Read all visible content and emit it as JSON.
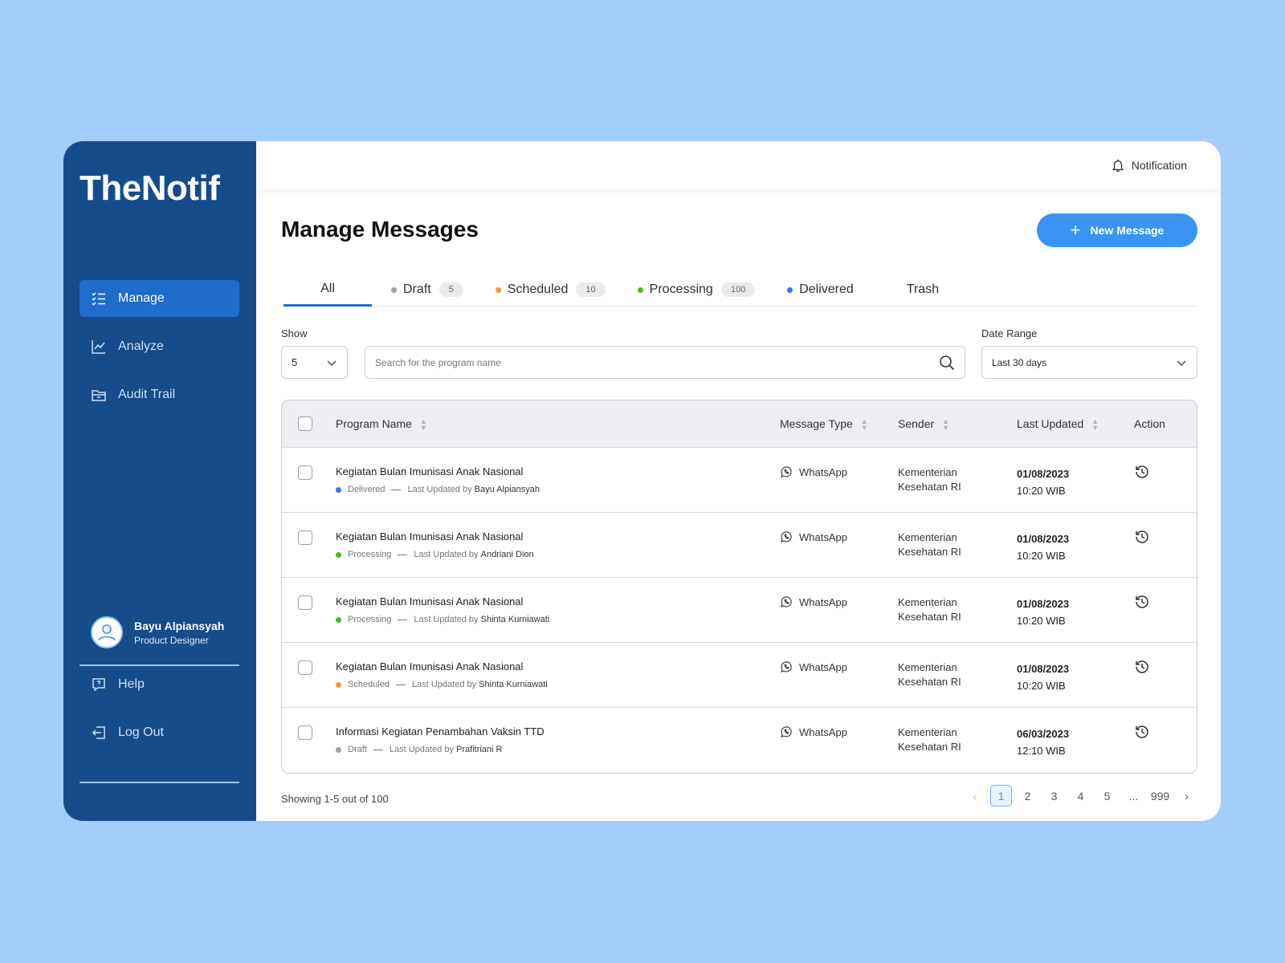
{
  "app": {
    "logo": "TheNotif"
  },
  "sidebar": {
    "items": [
      {
        "label": "Manage",
        "icon": "list-check-icon"
      },
      {
        "label": "Analyze",
        "icon": "chart-line-icon"
      },
      {
        "label": "Audit Trail",
        "icon": "folder-icon"
      }
    ],
    "user": {
      "name": "Bayu Alpiansyah",
      "role": "Product Designer"
    },
    "bottom": [
      {
        "label": "Help",
        "icon": "help-icon"
      },
      {
        "label": "Log Out",
        "icon": "logout-icon"
      }
    ]
  },
  "header": {
    "notification": "Notification"
  },
  "page": {
    "title": "Manage Messages",
    "new_button": "New Message"
  },
  "tabs": [
    {
      "label": "All"
    },
    {
      "label": "Draft",
      "count": "5",
      "color": "#9EA2A9"
    },
    {
      "label": "Scheduled",
      "count": "10",
      "color": "#F7993A"
    },
    {
      "label": "Processing",
      "count": "100",
      "color": "#4CB52E"
    },
    {
      "label": "Delivered",
      "color": "#3B73E0"
    },
    {
      "label": "Trash"
    }
  ],
  "filters": {
    "show_label": "Show",
    "show_value": "5",
    "search_placeholder": "Search for the program name",
    "date_label": "Date Range",
    "date_value": "Last 30 days"
  },
  "table": {
    "columns": [
      "Program Name",
      "Message Type",
      "Sender",
      "Last Updated",
      "Action"
    ],
    "rows": [
      {
        "name": "Kegiatan Bulan Imunisasi Anak Nasional",
        "status": "Delivered",
        "status_color": "#3B73E0",
        "updated_prefix": "Last Updated by",
        "updated_by": "Bayu  Alpiansyah",
        "type": "WhatsApp",
        "sender1": "Kementerian",
        "sender2": "Kesehatan RI",
        "date": "01/08/2023",
        "time": "10:20 WIB"
      },
      {
        "name": "Kegiatan Bulan Imunisasi Anak Nasional",
        "status": "Processing",
        "status_color": "#4CB52E",
        "updated_prefix": "Last Updated by",
        "updated_by": "Andriani Dion",
        "type": "WhatsApp",
        "sender1": "Kementerian",
        "sender2": "Kesehatan RI",
        "date": "01/08/2023",
        "time": "10:20 WIB"
      },
      {
        "name": "Kegiatan Bulan Imunisasi Anak Nasional",
        "status": "Processing",
        "status_color": "#4CB52E",
        "updated_prefix": "Last Updated by",
        "updated_by": "Shinta Kurniawati",
        "type": "WhatsApp",
        "sender1": "Kementerian",
        "sender2": "Kesehatan RI",
        "date": "01/08/2023",
        "time": "10:20 WIB"
      },
      {
        "name": "Kegiatan Bulan Imunisasi Anak Nasional",
        "status": "Scheduled",
        "status_color": "#F7993A",
        "updated_prefix": "Last Updated by",
        "updated_by": "Shinta Kurniawati",
        "type": "WhatsApp",
        "sender1": "Kementerian",
        "sender2": "Kesehatan RI",
        "date": "01/08/2023",
        "time": "10:20 WIB"
      },
      {
        "name": "Informasi Kegiatan Penambahan Vaksin TTD",
        "status": "Draft",
        "status_color": "#9EA2A9",
        "updated_prefix": "Last Updated by",
        "updated_by": "Prafitriani R",
        "type": "WhatsApp",
        "sender1": "Kementerian",
        "sender2": "Kesehatan RI",
        "date": "06/03/2023",
        "time": "12:10 WIB"
      }
    ]
  },
  "footer": {
    "showing": "Showing 1-5 out of 100",
    "pages": [
      "1",
      "2",
      "3",
      "4",
      "5",
      "...",
      "999"
    ],
    "current_page": "1"
  }
}
